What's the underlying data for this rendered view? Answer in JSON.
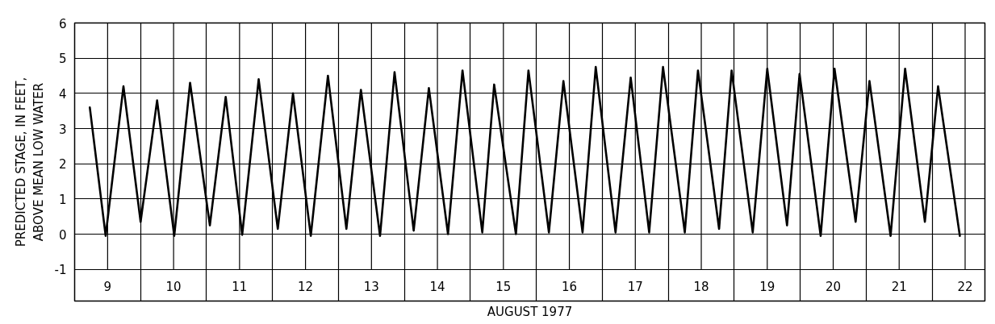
{
  "chart_data": {
    "type": "line",
    "xlabel": "AUGUST 1977",
    "ylabel": "PREDICTED STAGE, IN FEET,\nABOVE MEAN LOW WATER",
    "x": [
      9.23,
      9.47,
      9.74,
      10.0,
      10.25,
      10.51,
      10.75,
      11.05,
      11.29,
      11.54,
      11.79,
      12.08,
      12.31,
      12.58,
      12.84,
      13.12,
      13.34,
      13.63,
      13.85,
      14.14,
      14.37,
      14.66,
      14.88,
      15.18,
      15.36,
      15.69,
      15.88,
      16.19,
      16.41,
      16.7,
      16.9,
      17.2,
      17.43,
      17.71,
      17.92,
      18.25,
      18.45,
      18.77,
      18.96,
      19.28,
      19.5,
      19.8,
      19.99,
      20.31,
      20.52,
      20.84,
      21.05,
      21.37,
      21.59,
      21.89,
      22.09,
      22.42
    ],
    "series": [
      {
        "color": "#000000",
        "values": [
          3.6,
          -0.05,
          4.2,
          0.35,
          3.8,
          -0.05,
          4.3,
          0.25,
          3.9,
          -0.02,
          4.4,
          0.15,
          4.0,
          -0.05,
          4.5,
          0.15,
          4.1,
          -0.05,
          4.6,
          0.1,
          4.15,
          0.0,
          4.65,
          0.05,
          4.25,
          0.0,
          4.65,
          0.05,
          4.35,
          0.05,
          4.75,
          0.05,
          4.45,
          0.05,
          4.75,
          0.05,
          4.65,
          0.15,
          4.65,
          0.05,
          4.7,
          0.25,
          4.55,
          -0.05,
          4.7,
          0.35,
          4.35,
          -0.05,
          4.7,
          0.35,
          4.2,
          -0.05
        ]
      }
    ],
    "xlim": [
      9,
      22.8
    ],
    "ylim": [
      -1.9,
      6
    ],
    "yticks": [
      -1,
      0,
      1,
      2,
      3,
      4,
      5,
      6
    ],
    "xticks": [
      {
        "value": 9.5,
        "label": "9"
      },
      {
        "value": 10.5,
        "label": "10"
      },
      {
        "value": 11.5,
        "label": "11"
      },
      {
        "value": 12.5,
        "label": "12"
      },
      {
        "value": 13.5,
        "label": "13"
      },
      {
        "value": 14.5,
        "label": "14"
      },
      {
        "value": 15.5,
        "label": "15"
      },
      {
        "value": 16.5,
        "label": "16"
      },
      {
        "value": 17.5,
        "label": "17"
      },
      {
        "value": 18.5,
        "label": "18"
      },
      {
        "value": 19.5,
        "label": "19"
      },
      {
        "value": 20.5,
        "label": "20"
      },
      {
        "value": 21.5,
        "label": "21"
      },
      {
        "value": 22.5,
        "label": "22"
      }
    ],
    "grid": true,
    "line_style": "solid",
    "marker": "none"
  }
}
